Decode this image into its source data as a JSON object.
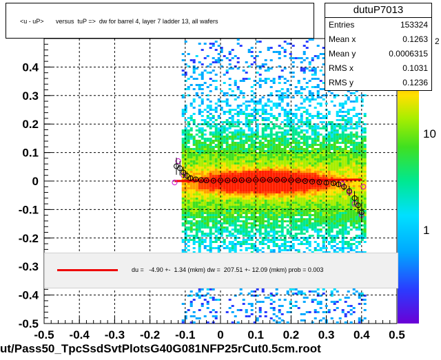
{
  "title": "<u - uP>       versus  tuP =>  dw for barrel 4, layer 7 ladder 13, all wafers",
  "stats": {
    "name": "dutuP7013",
    "rows": [
      {
        "label": "Entries",
        "value": "153324"
      },
      {
        "label": "Mean x",
        "value": "0.1263"
      },
      {
        "label": "Mean y",
        "value": "0.0006315"
      },
      {
        "label": "RMS x",
        "value": "0.1031"
      },
      {
        "label": "RMS y",
        "value": "0.1236"
      }
    ]
  },
  "fit_text": "du =   -4.90 +-  1.34 (mkm) dw =  207.51 +- 12.09 (mkm) prob = 0.003",
  "footer": "ut/Pass50_TpcSsdSvtPlotsG40G081NFP25rCut0.5cm.root",
  "colorbar": {
    "labels": [
      "10",
      "1"
    ],
    "top_label_fragment": "2"
  },
  "colors": {
    "fit_line": "#ee0000",
    "profile_black": "#000000",
    "profile_magenta": "#cc00cc"
  },
  "chart_data": {
    "type": "heatmap",
    "xlim": [
      -0.5,
      0.5
    ],
    "ylim": [
      -0.5,
      0.5
    ],
    "x_ticks": [
      "-0.5",
      "-0.4",
      "-0.3",
      "-0.2",
      "-0.1",
      "0",
      "0.1",
      "0.2",
      "0.3",
      "0.4",
      "0.5"
    ],
    "y_ticks": [
      "-0.5",
      "-0.4",
      "-0.3",
      "-0.2",
      "-0.1",
      "0",
      "0.1",
      "0.2",
      "0.3",
      "0.4"
    ],
    "grid": true,
    "colorbar_scale": "log",
    "fit_line": {
      "x": [
        -0.13,
        0.4
      ],
      "y": [
        0.0,
        0.005
      ]
    },
    "profile": [
      {
        "x": -0.125,
        "y": 0.052,
        "err": 0.03
      },
      {
        "x": -0.115,
        "y": 0.045,
        "err": 0.025
      },
      {
        "x": -0.105,
        "y": 0.03,
        "err": 0.02
      },
      {
        "x": -0.095,
        "y": 0.018,
        "err": 0.015
      },
      {
        "x": -0.085,
        "y": 0.01,
        "err": 0.01
      },
      {
        "x": -0.07,
        "y": 0.006,
        "err": 0.006
      },
      {
        "x": -0.055,
        "y": 0.003,
        "err": 0.004
      },
      {
        "x": -0.04,
        "y": 0.002,
        "err": 0.003
      },
      {
        "x": -0.02,
        "y": 0.001,
        "err": 0.003
      },
      {
        "x": 0.0,
        "y": 0.002,
        "err": 0.003
      },
      {
        "x": 0.02,
        "y": 0.002,
        "err": 0.003
      },
      {
        "x": 0.04,
        "y": 0.003,
        "err": 0.003
      },
      {
        "x": 0.06,
        "y": 0.003,
        "err": 0.003
      },
      {
        "x": 0.08,
        "y": 0.003,
        "err": 0.003
      },
      {
        "x": 0.1,
        "y": 0.004,
        "err": 0.003
      },
      {
        "x": 0.12,
        "y": 0.004,
        "err": 0.003
      },
      {
        "x": 0.14,
        "y": 0.004,
        "err": 0.003
      },
      {
        "x": 0.16,
        "y": 0.004,
        "err": 0.003
      },
      {
        "x": 0.18,
        "y": 0.004,
        "err": 0.003
      },
      {
        "x": 0.2,
        "y": 0.003,
        "err": 0.003
      },
      {
        "x": 0.22,
        "y": 0.002,
        "err": 0.003
      },
      {
        "x": 0.24,
        "y": 0.0,
        "err": 0.003
      },
      {
        "x": 0.26,
        "y": -0.002,
        "err": 0.004
      },
      {
        "x": 0.28,
        "y": -0.004,
        "err": 0.004
      },
      {
        "x": 0.3,
        "y": -0.006,
        "err": 0.005
      },
      {
        "x": 0.32,
        "y": -0.008,
        "err": 0.006
      },
      {
        "x": 0.335,
        "y": -0.012,
        "err": 0.008
      },
      {
        "x": 0.35,
        "y": -0.02,
        "err": 0.012
      },
      {
        "x": 0.365,
        "y": -0.035,
        "err": 0.018
      },
      {
        "x": 0.38,
        "y": -0.06,
        "err": 0.025
      },
      {
        "x": 0.39,
        "y": -0.085,
        "err": 0.03
      },
      {
        "x": 0.4,
        "y": -0.11,
        "err": 0.035
      }
    ],
    "profile_magenta": [
      {
        "x": -0.13,
        "y": -0.005
      },
      {
        "x": -0.12,
        "y": 0.07
      },
      {
        "x": -0.105,
        "y": 0.02
      },
      {
        "x": 0.345,
        "y": -0.01
      },
      {
        "x": 0.365,
        "y": -0.04
      },
      {
        "x": 0.38,
        "y": -0.08
      },
      {
        "x": 0.4,
        "y": -0.12
      },
      {
        "x": 0.405,
        "y": -0.02
      }
    ]
  }
}
